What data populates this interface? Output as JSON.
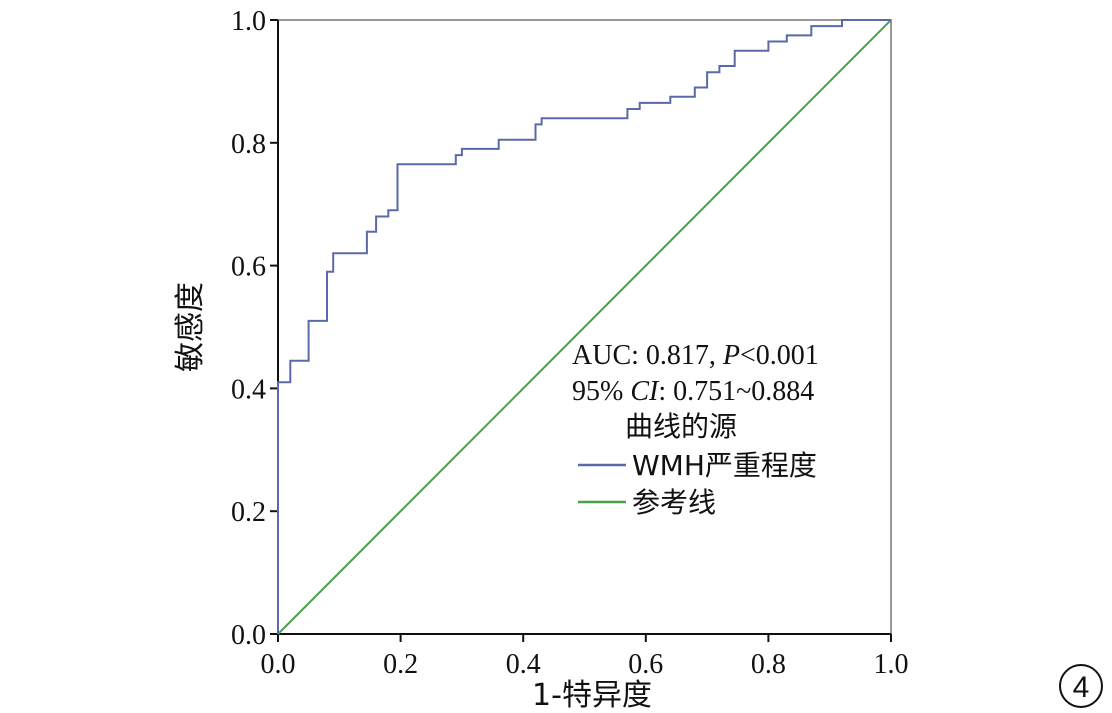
{
  "chart_data": {
    "type": "line",
    "title": "",
    "xlabel": "1-特异度",
    "ylabel": "敏感度",
    "xlim": [
      0,
      1
    ],
    "ylim": [
      0,
      1
    ],
    "x_ticks": [
      "0.0",
      "0.2",
      "0.4",
      "0.6",
      "0.8",
      "1.0"
    ],
    "y_ticks": [
      "0.0",
      "0.2",
      "0.4",
      "0.6",
      "0.8",
      "1.0"
    ],
    "grid": false,
    "legend": {
      "title": "曲线的源",
      "placement": "lower-right",
      "entries": [
        "WMH严重程度",
        "参考线"
      ]
    },
    "annotations": {
      "auc_prefix": "AUC: 0.817, ",
      "p_symbol": "P",
      "p_value": "<0.001",
      "ci_prefix": "95% ",
      "ci_symbol": "CI",
      "ci_value": ": 0.751~0.884"
    },
    "panel_label": "4",
    "colors": {
      "roc": "#5a6aa8",
      "reference": "#4aa04a"
    },
    "series": [
      {
        "name": "WMH严重程度",
        "x": [
          0,
          0,
          0.02,
          0.02,
          0.05,
          0.05,
          0.08,
          0.08,
          0.09,
          0.09,
          0.145,
          0.145,
          0.16,
          0.16,
          0.18,
          0.18,
          0.195,
          0.195,
          0.29,
          0.29,
          0.3,
          0.3,
          0.36,
          0.36,
          0.42,
          0.42,
          0.43,
          0.43,
          0.57,
          0.57,
          0.59,
          0.59,
          0.64,
          0.64,
          0.68,
          0.68,
          0.7,
          0.7,
          0.72,
          0.72,
          0.745,
          0.745,
          0.8,
          0.8,
          0.83,
          0.83,
          0.87,
          0.87,
          0.92,
          0.92,
          1.0
        ],
        "y": [
          0,
          0.41,
          0.41,
          0.445,
          0.445,
          0.51,
          0.51,
          0.59,
          0.59,
          0.62,
          0.62,
          0.655,
          0.655,
          0.68,
          0.68,
          0.69,
          0.69,
          0.765,
          0.765,
          0.78,
          0.78,
          0.79,
          0.79,
          0.805,
          0.805,
          0.83,
          0.83,
          0.84,
          0.84,
          0.855,
          0.855,
          0.865,
          0.865,
          0.875,
          0.875,
          0.89,
          0.89,
          0.915,
          0.915,
          0.925,
          0.925,
          0.95,
          0.95,
          0.965,
          0.965,
          0.975,
          0.975,
          0.99,
          0.99,
          1.0,
          1.0
        ]
      },
      {
        "name": "参考线",
        "x": [
          0,
          1
        ],
        "y": [
          0,
          1
        ]
      }
    ]
  }
}
